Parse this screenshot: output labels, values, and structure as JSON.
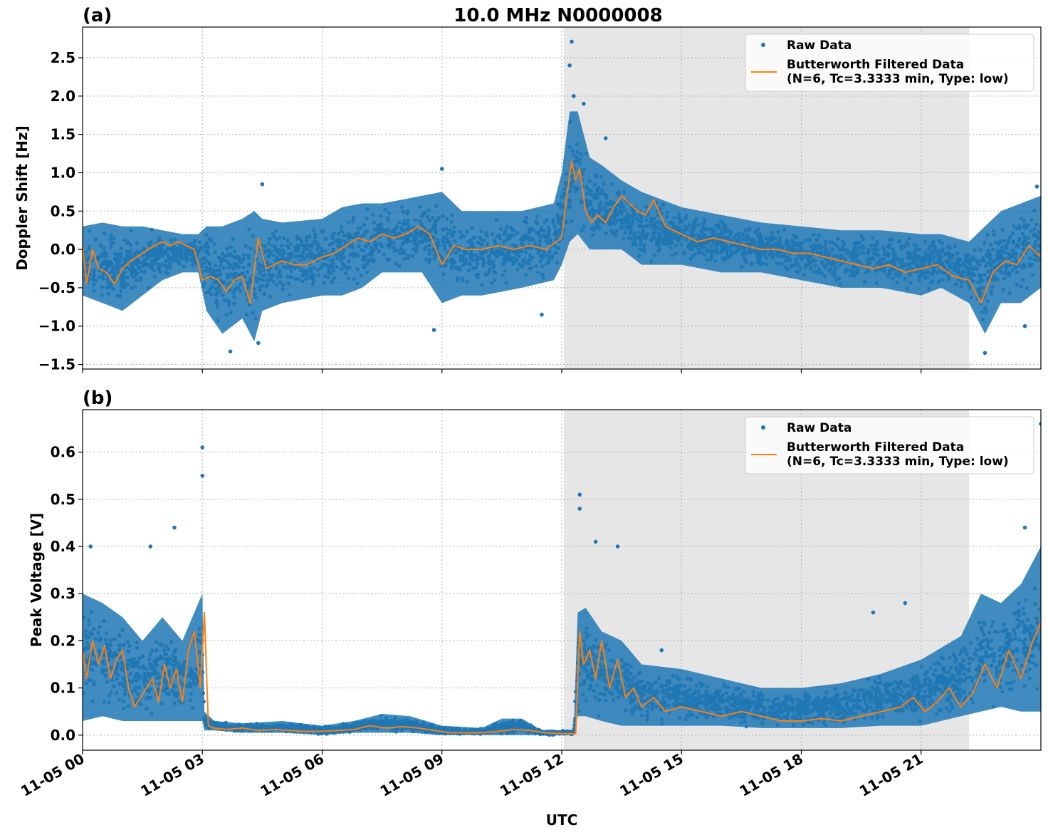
{
  "figure": {
    "title": "10.0 MHz N0000008",
    "xlabel": "UTC"
  },
  "colors": {
    "raw": "#1f77b4",
    "filtered": "#ff7f0e",
    "shade": "#e6e6e6",
    "grid": "#b0b0b0"
  },
  "chart_data": [
    {
      "type": "scatter",
      "panel_label": "(a)",
      "ylabel": "Doppler Shift [Hz]",
      "xlim_hours": [
        0,
        24
      ],
      "ylim": [
        -1.56,
        2.9
      ],
      "yticks": [
        -1.5,
        -1.0,
        -0.5,
        0.0,
        0.5,
        1.0,
        1.5,
        2.0,
        2.5
      ],
      "ytick_labels": [
        "−1.5",
        "−1.0",
        "−0.5",
        "0.0",
        "0.5",
        "1.0",
        "1.5",
        "2.0",
        "2.5"
      ],
      "xtick_labels": [
        "11-05 00",
        "11-05 03",
        "11-05 06",
        "11-05 09",
        "11-05 12",
        "11-05 15",
        "11-05 18",
        "11-05 21"
      ],
      "shaded_span_hours": [
        12.05,
        22.2
      ],
      "grid": true,
      "legend": {
        "placement": "top-right",
        "entries": [
          "Raw Data",
          "Butterworth Filtered Data",
          "(N=6, Tc=3.3333 min, Type: low)"
        ]
      },
      "series": [
        {
          "name": "Raw Data",
          "kind": "scatter-band",
          "x_hours": [
            0,
            0.5,
            1,
            1.5,
            2,
            2.5,
            2.9,
            3.1,
            3.5,
            4,
            4.3,
            4.5,
            5,
            6,
            6.5,
            7,
            7.5,
            8,
            8.5,
            9,
            9.5,
            10,
            11,
            11.8,
            12.0,
            12.2,
            12.4,
            12.7,
            13,
            13.5,
            14,
            15,
            16,
            17,
            18,
            19,
            20,
            21,
            21.5,
            22.2,
            22.6,
            23,
            23.5,
            24
          ],
          "y_low": [
            -0.6,
            -0.7,
            -0.8,
            -0.6,
            -0.4,
            -0.3,
            -0.3,
            -0.8,
            -1.1,
            -0.9,
            -1.2,
            -0.8,
            -0.7,
            -0.6,
            -0.6,
            -0.5,
            -0.3,
            -0.3,
            -0.3,
            -0.7,
            -0.6,
            -0.6,
            -0.5,
            -0.4,
            -0.2,
            0.1,
            0.2,
            0.0,
            0.0,
            0.0,
            -0.2,
            -0.2,
            -0.3,
            -0.3,
            -0.4,
            -0.5,
            -0.5,
            -0.6,
            -0.5,
            -0.7,
            -1.1,
            -0.7,
            -0.7,
            -0.5
          ],
          "y_high": [
            0.3,
            0.35,
            0.3,
            0.3,
            0.25,
            0.2,
            0.2,
            0.3,
            0.3,
            0.4,
            0.5,
            0.4,
            0.35,
            0.4,
            0.55,
            0.6,
            0.6,
            0.65,
            0.7,
            0.75,
            0.5,
            0.5,
            0.5,
            0.6,
            1.0,
            1.8,
            1.8,
            1.2,
            1.1,
            0.9,
            0.75,
            0.55,
            0.45,
            0.35,
            0.3,
            0.25,
            0.25,
            0.2,
            0.2,
            0.1,
            0.3,
            0.5,
            0.6,
            0.7
          ],
          "outliers": [
            [
              12.25,
              2.71
            ],
            [
              12.2,
              2.4
            ],
            [
              12.3,
              2.0
            ],
            [
              12.55,
              1.9
            ],
            [
              13.1,
              1.45
            ],
            [
              4.5,
              0.85
            ],
            [
              9.0,
              1.05
            ],
            [
              8.8,
              -1.05
            ],
            [
              3.7,
              -1.33
            ],
            [
              4.4,
              -1.22
            ],
            [
              22.6,
              -1.35
            ],
            [
              23.6,
              -1.0
            ],
            [
              23.9,
              0.82
            ],
            [
              11.5,
              -0.85
            ]
          ]
        },
        {
          "name": "Butterworth Filtered Data",
          "kind": "line",
          "x_hours": [
            0,
            0.1,
            0.25,
            0.4,
            0.6,
            0.8,
            1.0,
            1.2,
            1.5,
            1.8,
            2.0,
            2.2,
            2.4,
            2.6,
            2.8,
            3.0,
            3.2,
            3.4,
            3.6,
            3.8,
            4.0,
            4.2,
            4.4,
            4.6,
            4.8,
            5.0,
            5.3,
            5.6,
            6.0,
            6.3,
            6.6,
            6.9,
            7.2,
            7.5,
            7.8,
            8.1,
            8.4,
            8.7,
            9.0,
            9.3,
            9.6,
            10.0,
            10.4,
            10.8,
            11.2,
            11.6,
            12.0,
            12.1,
            12.25,
            12.35,
            12.45,
            12.6,
            12.75,
            12.9,
            13.1,
            13.3,
            13.5,
            13.7,
            13.9,
            14.1,
            14.3,
            14.6,
            15.0,
            15.4,
            15.8,
            16.2,
            16.6,
            17.0,
            17.4,
            17.8,
            18.2,
            18.6,
            19.0,
            19.4,
            19.8,
            20.2,
            20.6,
            21.0,
            21.4,
            21.8,
            22.2,
            22.5,
            22.8,
            23.1,
            23.4,
            23.7,
            24.0
          ],
          "y": [
            0.05,
            -0.45,
            0.0,
            -0.25,
            -0.3,
            -0.45,
            -0.25,
            -0.15,
            -0.05,
            0.05,
            0.1,
            0.05,
            0.1,
            0.05,
            0.0,
            -0.4,
            -0.35,
            -0.4,
            -0.55,
            -0.4,
            -0.35,
            -0.7,
            0.15,
            -0.25,
            -0.2,
            -0.15,
            -0.2,
            -0.2,
            -0.1,
            -0.05,
            0.05,
            0.15,
            0.1,
            0.2,
            0.15,
            0.2,
            0.3,
            0.2,
            -0.2,
            0.05,
            0.0,
            0.0,
            0.05,
            0.0,
            0.05,
            0.0,
            0.15,
            0.6,
            1.15,
            0.9,
            1.05,
            0.5,
            0.35,
            0.45,
            0.35,
            0.55,
            0.7,
            0.6,
            0.5,
            0.45,
            0.65,
            0.3,
            0.2,
            0.1,
            0.15,
            0.1,
            0.05,
            0.0,
            0.0,
            -0.05,
            -0.05,
            -0.1,
            -0.15,
            -0.2,
            -0.25,
            -0.2,
            -0.3,
            -0.25,
            -0.2,
            -0.35,
            -0.4,
            -0.7,
            -0.3,
            -0.15,
            -0.2,
            0.05,
            -0.1
          ]
        }
      ]
    },
    {
      "type": "scatter",
      "panel_label": "(b)",
      "ylabel": "Peak Voltage [V]",
      "xlim_hours": [
        0,
        24
      ],
      "ylim": [
        -0.032,
        0.69
      ],
      "yticks": [
        0.0,
        0.1,
        0.2,
        0.3,
        0.4,
        0.5,
        0.6
      ],
      "ytick_labels": [
        "0.0",
        "0.1",
        "0.2",
        "0.3",
        "0.4",
        "0.5",
        "0.6"
      ],
      "xtick_labels": [
        "11-05 00",
        "11-05 03",
        "11-05 06",
        "11-05 09",
        "11-05 12",
        "11-05 15",
        "11-05 18",
        "11-05 21"
      ],
      "shaded_span_hours": [
        12.05,
        22.2
      ],
      "grid": true,
      "legend": {
        "placement": "top-right",
        "entries": [
          "Raw Data",
          "Butterworth Filtered Data",
          "(N=6, Tc=3.3333 min, Type: low)"
        ]
      },
      "series": [
        {
          "name": "Raw Data",
          "kind": "scatter-band",
          "x_hours": [
            0,
            0.5,
            1,
            1.5,
            2,
            2.5,
            2.9,
            3.0,
            3.05,
            3.3,
            4,
            5,
            6,
            6.8,
            7.5,
            8.2,
            9,
            10,
            10.5,
            11,
            11.5,
            12.0,
            12.3,
            12.4,
            12.6,
            13,
            13.5,
            14,
            15,
            16,
            17,
            18,
            19,
            20,
            21,
            22,
            22.5,
            23,
            23.5,
            24
          ],
          "y_low": [
            0.03,
            0.04,
            0.03,
            0.03,
            0.03,
            0.03,
            0.03,
            0.03,
            0.01,
            0.01,
            0.005,
            0.005,
            0.0,
            0.005,
            0.005,
            0.005,
            0.0,
            0.0,
            0.0,
            0.0,
            0.0,
            0.0,
            0.0,
            0.04,
            0.04,
            0.03,
            0.02,
            0.02,
            0.02,
            0.02,
            0.015,
            0.015,
            0.015,
            0.02,
            0.02,
            0.04,
            0.05,
            0.06,
            0.05,
            0.05
          ],
          "y_high": [
            0.3,
            0.28,
            0.25,
            0.2,
            0.25,
            0.2,
            0.28,
            0.3,
            0.05,
            0.03,
            0.025,
            0.03,
            0.02,
            0.03,
            0.045,
            0.04,
            0.02,
            0.015,
            0.035,
            0.035,
            0.01,
            0.01,
            0.01,
            0.26,
            0.27,
            0.22,
            0.2,
            0.15,
            0.14,
            0.12,
            0.1,
            0.1,
            0.11,
            0.13,
            0.16,
            0.21,
            0.3,
            0.28,
            0.32,
            0.4
          ],
          "outliers": [
            [
              3.0,
              0.61
            ],
            [
              3.0,
              0.55
            ],
            [
              2.3,
              0.44
            ],
            [
              1.7,
              0.4
            ],
            [
              12.45,
              0.51
            ],
            [
              12.45,
              0.48
            ],
            [
              12.85,
              0.41
            ],
            [
              13.4,
              0.4
            ],
            [
              23.6,
              0.44
            ],
            [
              24.0,
              0.66
            ],
            [
              20.6,
              0.28
            ],
            [
              19.8,
              0.26
            ],
            [
              0.2,
              0.4
            ],
            [
              14.5,
              0.18
            ]
          ]
        },
        {
          "name": "Butterworth Filtered Data",
          "kind": "line",
          "x_hours": [
            0,
            0.1,
            0.25,
            0.4,
            0.55,
            0.7,
            0.85,
            1.0,
            1.15,
            1.3,
            1.45,
            1.6,
            1.75,
            1.9,
            2.05,
            2.2,
            2.35,
            2.5,
            2.65,
            2.8,
            2.95,
            3.05,
            3.15,
            3.3,
            3.6,
            4.0,
            4.4,
            4.8,
            5.2,
            5.6,
            6.0,
            6.4,
            6.8,
            7.2,
            7.6,
            8.0,
            8.4,
            8.8,
            9.2,
            9.6,
            10.0,
            10.4,
            10.8,
            11.2,
            11.6,
            12.0,
            12.35,
            12.45,
            12.55,
            12.7,
            12.85,
            13.0,
            13.2,
            13.4,
            13.6,
            13.8,
            14.0,
            14.3,
            14.6,
            15.0,
            15.5,
            16.0,
            16.5,
            17.0,
            17.5,
            18.0,
            18.5,
            19.0,
            19.5,
            20.0,
            20.5,
            20.8,
            21.1,
            21.4,
            21.7,
            22.0,
            22.3,
            22.6,
            22.9,
            23.2,
            23.5,
            23.8,
            24.0
          ],
          "y": [
            0.18,
            0.12,
            0.2,
            0.15,
            0.19,
            0.12,
            0.16,
            0.18,
            0.1,
            0.06,
            0.08,
            0.1,
            0.12,
            0.07,
            0.15,
            0.1,
            0.14,
            0.07,
            0.18,
            0.22,
            0.1,
            0.26,
            0.02,
            0.015,
            0.012,
            0.015,
            0.01,
            0.012,
            0.01,
            0.008,
            0.008,
            0.01,
            0.012,
            0.02,
            0.015,
            0.018,
            0.015,
            0.01,
            0.005,
            0.005,
            0.005,
            0.008,
            0.012,
            0.01,
            0.005,
            0.003,
            0.003,
            0.22,
            0.15,
            0.18,
            0.12,
            0.2,
            0.1,
            0.16,
            0.08,
            0.1,
            0.06,
            0.08,
            0.05,
            0.06,
            0.05,
            0.04,
            0.05,
            0.04,
            0.03,
            0.03,
            0.035,
            0.03,
            0.04,
            0.05,
            0.06,
            0.08,
            0.05,
            0.07,
            0.1,
            0.06,
            0.09,
            0.15,
            0.1,
            0.18,
            0.12,
            0.2,
            0.24
          ]
        }
      ]
    }
  ]
}
